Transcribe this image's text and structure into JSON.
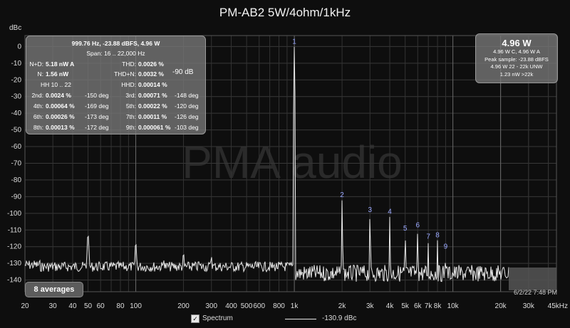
{
  "title": "PM-AB2 5W/4ohm/1kHz",
  "watermark": "PMA audio",
  "chart_data": {
    "type": "line",
    "title": "PM-AB2 5W/4ohm/1kHz",
    "ylabel": "dBc",
    "xscale": "log",
    "xlim": [
      20,
      45000
    ],
    "ylim": [
      -147,
      4
    ],
    "yticks": [
      0,
      -10,
      -20,
      -30,
      -40,
      -50,
      -60,
      -70,
      -80,
      -90,
      -100,
      -110,
      -120,
      -130,
      -140
    ],
    "xticks": [
      {
        "v": 20,
        "label": "20"
      },
      {
        "v": 30,
        "label": "30"
      },
      {
        "v": 40,
        "label": "40"
      },
      {
        "v": 50,
        "label": "50"
      },
      {
        "v": 60,
        "label": "60"
      },
      {
        "v": 80,
        "label": "80"
      },
      {
        "v": 100,
        "label": "100"
      },
      {
        "v": 200,
        "label": "200"
      },
      {
        "v": 300,
        "label": "300"
      },
      {
        "v": 400,
        "label": "400"
      },
      {
        "v": 500,
        "label": "500"
      },
      {
        "v": 600,
        "label": "600"
      },
      {
        "v": 800,
        "label": "800"
      },
      {
        "v": 1000,
        "label": "1k"
      },
      {
        "v": 2000,
        "label": "2k"
      },
      {
        "v": 3000,
        "label": "3k"
      },
      {
        "v": 4000,
        "label": "4k"
      },
      {
        "v": 5000,
        "label": "5k"
      },
      {
        "v": 6000,
        "label": "6k"
      },
      {
        "v": 7000,
        "label": "7k"
      },
      {
        "v": 8000,
        "label": "8k"
      },
      {
        "v": 10000,
        "label": "10k"
      },
      {
        "v": 20000,
        "label": "20k"
      },
      {
        "v": 30000,
        "label": "30k"
      },
      {
        "v": 45000,
        "label": "45kHz"
      }
    ],
    "harmonics": [
      {
        "label": "1",
        "f": 1000,
        "db": 0
      },
      {
        "label": "2",
        "f": 2000,
        "db": -92
      },
      {
        "label": "3",
        "f": 3000,
        "db": -101
      },
      {
        "label": "4",
        "f": 4000,
        "db": -102
      },
      {
        "label": "5",
        "f": 5000,
        "db": -112
      },
      {
        "label": "6",
        "f": 6000,
        "db": -110
      },
      {
        "label": "7",
        "f": 7000,
        "db": -117
      },
      {
        "label": "8",
        "f": 8000,
        "db": -116
      },
      {
        "label": "9",
        "f": 9000,
        "db": -123
      }
    ],
    "spurs": [
      {
        "f": 50,
        "db": -113
      },
      {
        "f": 100,
        "db": -118
      },
      {
        "f": 150,
        "db": -128
      },
      {
        "f": 200,
        "db": -124
      },
      {
        "f": 250,
        "db": -129
      },
      {
        "f": 300,
        "db": -126
      },
      {
        "f": 400,
        "db": -130
      },
      {
        "f": 500,
        "db": -130
      }
    ],
    "noise_floor_db": -137,
    "series": [
      {
        "name": "Spectrum",
        "value": "-130.9 dBc"
      }
    ]
  },
  "measurement": {
    "header1": "999.76 Hz, -23.88 dBFS, 4.96 W",
    "header2": "Span: 16 .. 22,000 Hz",
    "nd_label": "N+D:",
    "nd_value": "5.18 nW A",
    "n_label": "N:",
    "n_value": "1.56 nW",
    "hh_label": "HH 10 .. 22",
    "thd_label": "THD:",
    "thd_value": "0.0026 %",
    "thdn_label": "THD+N:",
    "thdn_value": "0.0032 %",
    "hhd_label": "HHD:",
    "hhd_value": "0.00014 %",
    "db_note": "-90 dB",
    "h2_label": "2nd:",
    "h2_value": "0.0024 %",
    "h2_phase": "-150 deg",
    "h3_label": "3rd:",
    "h3_value": "0.00071 %",
    "h3_phase": "-148 deg",
    "h4_label": "4th:",
    "h4_value": "0.00064 %",
    "h4_phase": "-169 deg",
    "h5_label": "5th:",
    "h5_value": "0.00022 %",
    "h5_phase": "-120 deg",
    "h6_label": "6th:",
    "h6_value": "0.00026 %",
    "h6_phase": "-173 deg",
    "h7_label": "7th:",
    "h7_value": "0.00011 %",
    "h7_phase": "-126 deg",
    "h8_label": "8th:",
    "h8_value": "0.00013 %",
    "h8_phase": "-172 deg",
    "h9_label": "9th:",
    "h9_value": "0.000061 %",
    "h9_phase": "-103 deg"
  },
  "power": {
    "main": "4.96 W",
    "line1": "4.96 W C, 4.96 W A",
    "line2": "Peak sample: -23.88 dBFS",
    "line3": "4.96 W 22 - 22k UNW",
    "line4": "1.23 nW >22k"
  },
  "averages": "8 averages",
  "timestamp": "6/2/22 7:48 PM",
  "legend": {
    "checkmark": "✓",
    "name": "Spectrum",
    "value": "-130.9 dBc"
  },
  "colors": {
    "background": "#0e0e0e",
    "trace": "#e8e8e8",
    "grid": "#3a3a3a",
    "harmonic_label": "#9aa8ff"
  }
}
